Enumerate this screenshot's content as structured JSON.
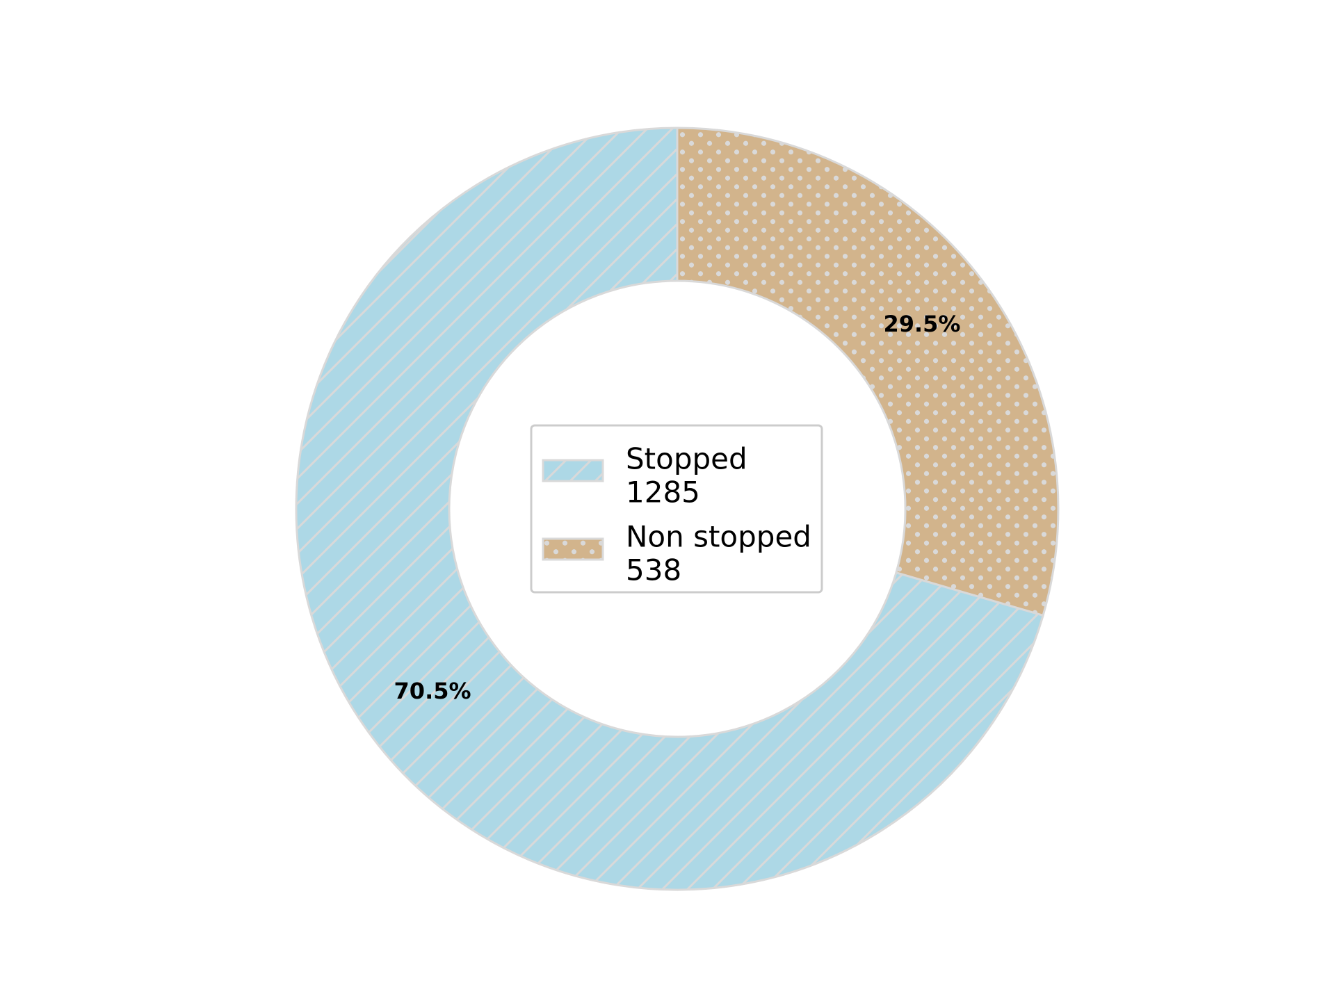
{
  "chart_data": {
    "type": "pie",
    "variant": "donut",
    "categories": [
      "Stopped",
      "Non stopped"
    ],
    "values": [
      1285,
      538
    ],
    "percent_labels": [
      "70.5%",
      "29.5%"
    ],
    "legend": {
      "placement": "center",
      "entries": [
        {
          "label": "Stopped",
          "count": "1285"
        },
        {
          "label": "Non stopped",
          "count": "538"
        }
      ]
    },
    "colors": {
      "Stopped": "#add8e6",
      "Non stopped": "#d2b48c",
      "edge": "#d9d9d9",
      "hatch": "#d9d9d9"
    },
    "hatches": {
      "Stopped": "diagonal-lines",
      "Non stopped": "dots"
    }
  }
}
